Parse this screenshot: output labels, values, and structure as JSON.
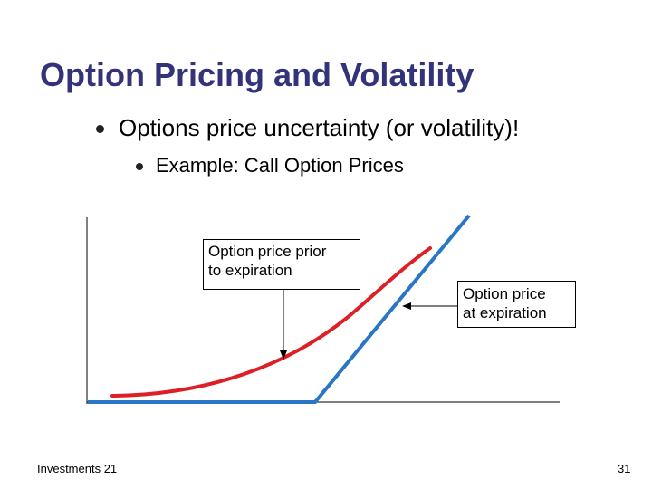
{
  "slide": {
    "title": "Option Pricing and Volatility",
    "bullet_1": "Options price uncertainty (or volatility)!",
    "bullet_2": "Example: Call Option Prices"
  },
  "diagram": {
    "callout_prior": [
      "Option price prior",
      "to expiration"
    ],
    "callout_expiration": [
      "Option price",
      "at expiration"
    ],
    "colors": {
      "prior_curve": "#dd1f26",
      "expiration_line": "#2a76c6",
      "axes": "#000000"
    }
  },
  "footer": {
    "left": "Investments 21",
    "page_number": "31"
  }
}
